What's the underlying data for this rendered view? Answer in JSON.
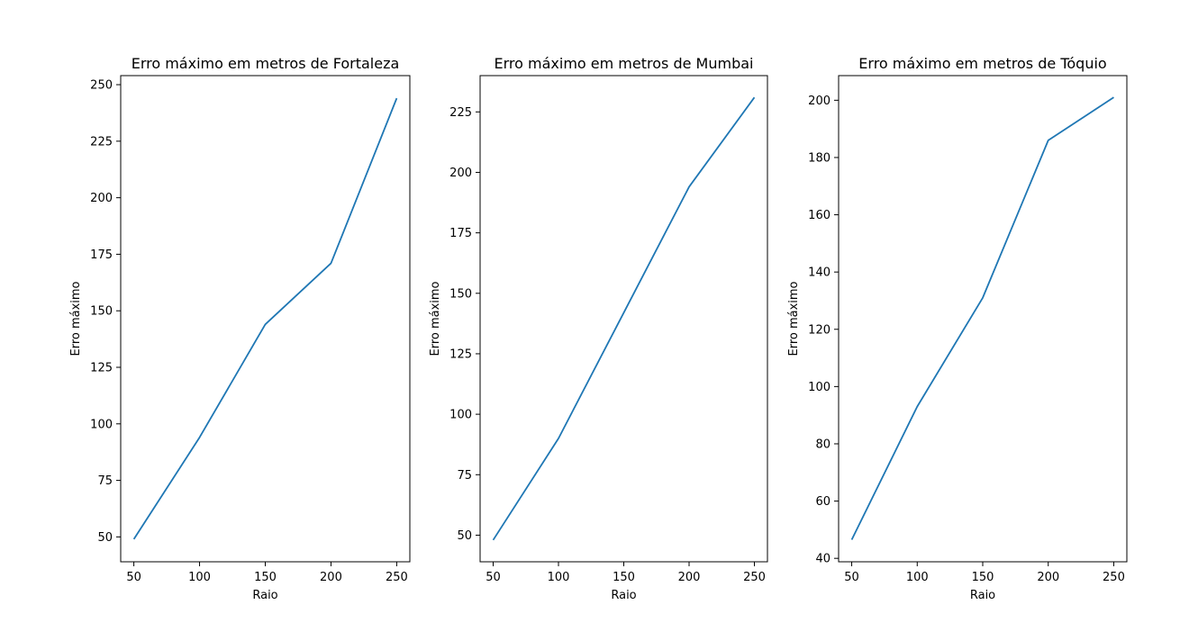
{
  "chart_data": [
    {
      "type": "line",
      "title": "Erro máximo em metros de Fortaleza",
      "xlabel": "Raio",
      "ylabel": "Erro máximo",
      "x": [
        50,
        100,
        150,
        200,
        250
      ],
      "values": [
        49,
        94,
        144,
        171,
        244
      ],
      "xlim": [
        40,
        260
      ],
      "ylim": [
        39,
        254
      ],
      "xticks": [
        50,
        100,
        150,
        200,
        250
      ],
      "yticks": [
        50,
        75,
        100,
        125,
        150,
        175,
        200,
        225,
        250
      ],
      "color": "#1f77b4"
    },
    {
      "type": "line",
      "title": "Erro máximo em metros de Mumbai",
      "xlabel": "Raio",
      "ylabel": "Erro máximo",
      "x": [
        50,
        100,
        150,
        200,
        250
      ],
      "values": [
        48,
        90,
        142,
        194,
        231
      ],
      "xlim": [
        40,
        260
      ],
      "ylim": [
        39,
        240
      ],
      "xticks": [
        50,
        100,
        150,
        200,
        250
      ],
      "yticks": [
        50,
        75,
        100,
        125,
        150,
        175,
        200,
        225
      ],
      "color": "#1f77b4"
    },
    {
      "type": "line",
      "title": "Erro máximo em metros de Tóquio",
      "xlabel": "Raio",
      "ylabel": "Erro máximo",
      "x": [
        50,
        100,
        150,
        200,
        250
      ],
      "values": [
        46.5,
        93,
        131,
        186,
        201
      ],
      "xlim": [
        40,
        260
      ],
      "ylim": [
        38.8,
        208.6
      ],
      "xticks": [
        50,
        100,
        150,
        200,
        250
      ],
      "yticks": [
        40,
        60,
        80,
        100,
        120,
        140,
        160,
        180,
        200
      ],
      "color": "#1f77b4"
    }
  ]
}
